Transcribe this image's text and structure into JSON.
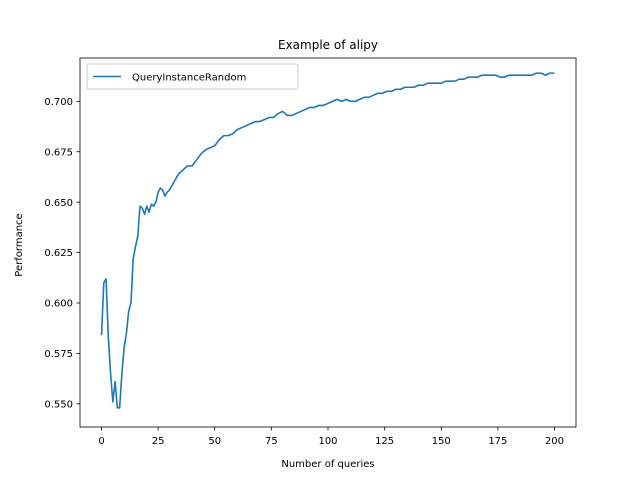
{
  "chart_data": {
    "type": "line",
    "title": "Example of alipy",
    "xlabel": "Number of queries",
    "ylabel": "Performance",
    "xlim": [
      -9.5,
      209.5
    ],
    "ylim": [
      0.5385,
      0.7215
    ],
    "xticks": [
      0,
      25,
      50,
      75,
      100,
      125,
      150,
      175,
      200
    ],
    "yticks": [
      0.55,
      0.575,
      0.6,
      0.625,
      0.65,
      0.675,
      0.7
    ],
    "ytick_labels": [
      "0.550",
      "0.575",
      "0.600",
      "0.625",
      "0.650",
      "0.675",
      "0.700"
    ],
    "grid": false,
    "legend_position": "upper-left",
    "series": [
      {
        "name": "QueryInstanceRandom",
        "color": "#1f77b4",
        "x": [
          0,
          1,
          2,
          3,
          4,
          5,
          6,
          7,
          8,
          9,
          10,
          11,
          12,
          13,
          14,
          15,
          16,
          17,
          18,
          19,
          20,
          21,
          22,
          23,
          24,
          25,
          26,
          27,
          28,
          29,
          30,
          32,
          34,
          36,
          38,
          40,
          42,
          44,
          46,
          48,
          50,
          52,
          54,
          56,
          58,
          60,
          62,
          64,
          66,
          68,
          70,
          72,
          74,
          76,
          78,
          80,
          82,
          84,
          86,
          88,
          90,
          92,
          94,
          96,
          98,
          100,
          102,
          104,
          106,
          108,
          110,
          112,
          114,
          116,
          118,
          120,
          122,
          124,
          126,
          128,
          130,
          132,
          134,
          136,
          138,
          140,
          142,
          144,
          146,
          148,
          150,
          152,
          154,
          156,
          158,
          160,
          162,
          164,
          166,
          168,
          170,
          172,
          174,
          176,
          178,
          180,
          182,
          184,
          186,
          188,
          190,
          192,
          194,
          196,
          198,
          200
        ],
        "values": [
          0.584,
          0.61,
          0.612,
          0.583,
          0.565,
          0.551,
          0.561,
          0.548,
          0.548,
          0.565,
          0.578,
          0.585,
          0.596,
          0.6,
          0.622,
          0.628,
          0.633,
          0.648,
          0.647,
          0.644,
          0.648,
          0.645,
          0.649,
          0.648,
          0.65,
          0.655,
          0.657,
          0.656,
          0.653,
          0.655,
          0.656,
          0.66,
          0.664,
          0.666,
          0.668,
          0.668,
          0.671,
          0.674,
          0.676,
          0.677,
          0.678,
          0.681,
          0.683,
          0.683,
          0.684,
          0.686,
          0.687,
          0.688,
          0.689,
          0.69,
          0.69,
          0.691,
          0.692,
          0.692,
          0.694,
          0.695,
          0.693,
          0.693,
          0.694,
          0.695,
          0.696,
          0.697,
          0.697,
          0.698,
          0.698,
          0.699,
          0.7,
          0.701,
          0.7,
          0.701,
          0.7,
          0.7,
          0.701,
          0.702,
          0.702,
          0.703,
          0.704,
          0.704,
          0.705,
          0.705,
          0.706,
          0.706,
          0.707,
          0.707,
          0.707,
          0.708,
          0.708,
          0.709,
          0.709,
          0.709,
          0.709,
          0.71,
          0.71,
          0.71,
          0.711,
          0.711,
          0.712,
          0.712,
          0.712,
          0.713,
          0.713,
          0.713,
          0.713,
          0.712,
          0.712,
          0.713,
          0.713,
          0.713,
          0.713,
          0.713,
          0.713,
          0.714,
          0.714,
          0.713,
          0.714,
          0.714
        ]
      }
    ]
  }
}
